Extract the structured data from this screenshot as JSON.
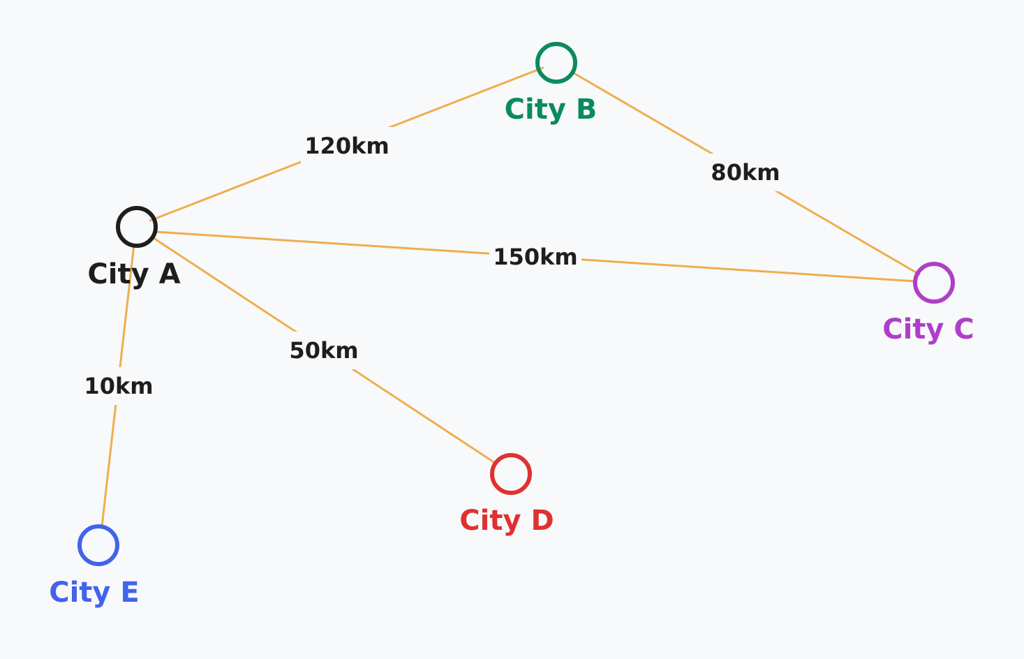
{
  "colors": {
    "background": "#f8f9fa",
    "edge": "#f0ad4e",
    "edge_label": "#1e1e1e"
  },
  "nodes": [
    {
      "id": "a",
      "label": "City A",
      "color": "#1e1e1e"
    },
    {
      "id": "b",
      "label": "City B",
      "color": "#0c8a5f"
    },
    {
      "id": "c",
      "label": "City C",
      "color": "#ae3ec9"
    },
    {
      "id": "d",
      "label": "City D",
      "color": "#e03131"
    },
    {
      "id": "e",
      "label": "City E",
      "color": "#4263eb"
    }
  ],
  "edges": [
    {
      "from": "a",
      "to": "b",
      "label": "120km"
    },
    {
      "from": "b",
      "to": "c",
      "label": "80km"
    },
    {
      "from": "a",
      "to": "c",
      "label": "150km"
    },
    {
      "from": "a",
      "to": "d",
      "label": "50km"
    },
    {
      "from": "a",
      "to": "e",
      "label": "10km"
    }
  ]
}
